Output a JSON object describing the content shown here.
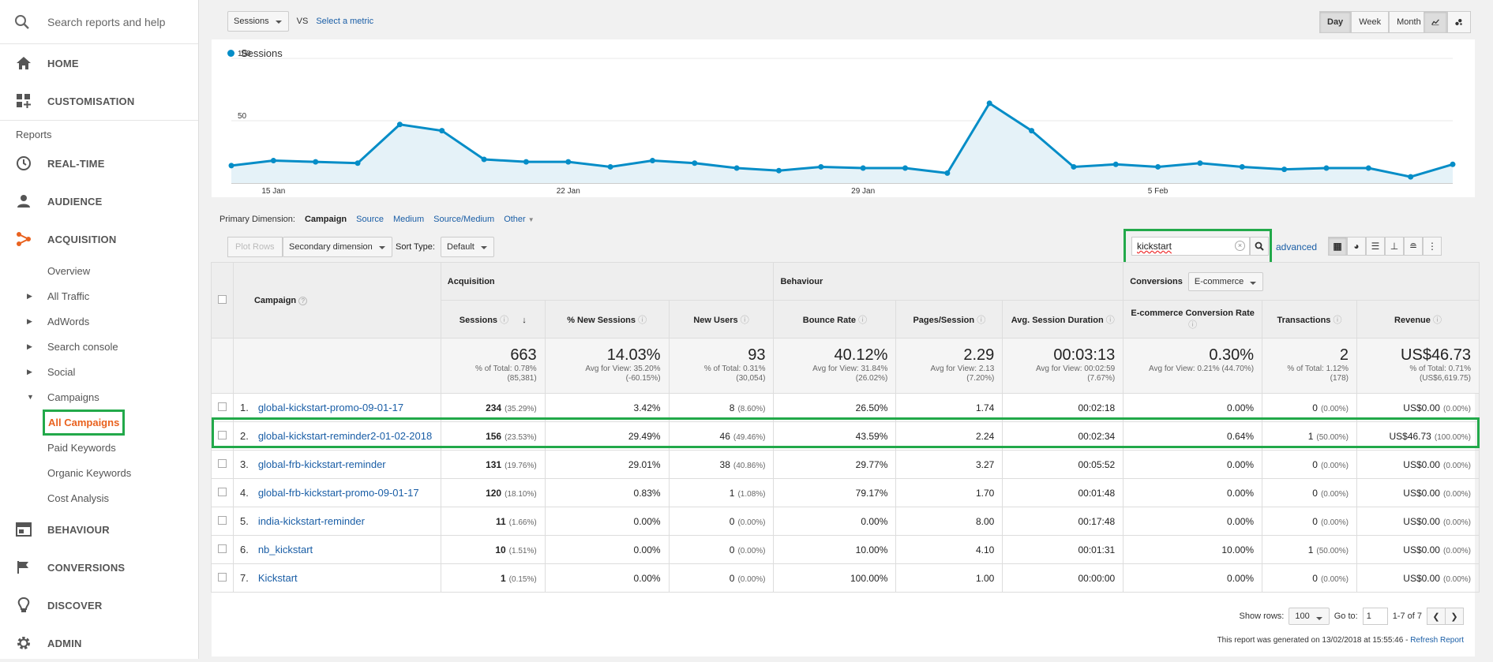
{
  "sidebar": {
    "search_placeholder": "Search reports and help",
    "items": [
      {
        "label": "HOME"
      },
      {
        "label": "CUSTOMISATION"
      }
    ],
    "reports_label": "Reports",
    "sections": [
      {
        "label": "REAL-TIME"
      },
      {
        "label": "AUDIENCE"
      },
      {
        "label": "ACQUISITION"
      }
    ],
    "acq_sub": [
      "Overview",
      "All Traffic",
      "AdWords",
      "Search console",
      "Social",
      "Campaigns"
    ],
    "campaign_sub": [
      "All Campaigns",
      "Paid Keywords",
      "Organic Keywords",
      "Cost Analysis"
    ],
    "bottom": [
      {
        "label": "BEHAVIOUR"
      },
      {
        "label": "CONVERSIONS"
      },
      {
        "label": "DISCOVER"
      },
      {
        "label": "ADMIN"
      }
    ]
  },
  "topbar": {
    "metric_select": "Sessions",
    "vs": "VS",
    "select_metric": "Select a metric",
    "range_buttons": [
      "Day",
      "Week",
      "Month"
    ]
  },
  "chart_data": {
    "type": "line",
    "title": "",
    "series": [
      {
        "name": "Sessions",
        "values": [
          14,
          18,
          17,
          16,
          47,
          42,
          19,
          17,
          17,
          13,
          18,
          16,
          12,
          10,
          13,
          12,
          12,
          8,
          64,
          42,
          13,
          15,
          13,
          16,
          13,
          11,
          12,
          12,
          5,
          15
        ]
      }
    ],
    "x_ticks": [
      "15 Jan",
      "22 Jan",
      "29 Jan",
      "5 Feb"
    ],
    "y_ticks": [
      "100",
      "50"
    ],
    "ylim": [
      0,
      100
    ],
    "color": "#058dc7"
  },
  "primary_dimension": {
    "label": "Primary Dimension:",
    "options": [
      "Campaign",
      "Source",
      "Medium",
      "Source/Medium",
      "Other"
    ]
  },
  "tools": {
    "plot_rows": "Plot Rows",
    "secondary_dimension": "Secondary dimension",
    "sort_type_label": "Sort Type:",
    "sort_type": "Default",
    "search_value": "kickstart",
    "advanced": "advanced"
  },
  "table": {
    "campaign_header": "Campaign",
    "groups": {
      "acquisition": "Acquisition",
      "behaviour": "Behaviour",
      "conversions": "Conversions",
      "conversions_select": "E-commerce"
    },
    "columns": [
      "Sessions",
      "% New Sessions",
      "New Users",
      "Bounce Rate",
      "Pages/Session",
      "Avg. Session Duration",
      "E-commerce Conversion Rate",
      "Transactions",
      "Revenue"
    ],
    "totals": [
      {
        "big": "663",
        "l1": "% of Total: 0.78%",
        "l2": "(85,381)"
      },
      {
        "big": "14.03%",
        "l1": "Avg for View: 35.20%",
        "l2": "(-60.15%)"
      },
      {
        "big": "93",
        "l1": "% of Total: 0.31%",
        "l2": "(30,054)"
      },
      {
        "big": "40.12%",
        "l1": "Avg for View: 31.84%",
        "l2": "(26.02%)"
      },
      {
        "big": "2.29",
        "l1": "Avg for View: 2.13",
        "l2": "(7.20%)"
      },
      {
        "big": "00:03:13",
        "l1": "Avg for View: 00:02:59",
        "l2": "(7.67%)"
      },
      {
        "big": "0.30%",
        "l1": "Avg for View: 0.21% (44.70%)",
        "l2": ""
      },
      {
        "big": "2",
        "l1": "% of Total: 1.12%",
        "l2": "(178)"
      },
      {
        "big": "US$46.73",
        "l1": "% of Total: 0.71%",
        "l2": "(US$6,619.75)"
      }
    ],
    "rows": [
      {
        "n": "1.",
        "name": "global-kickstart-promo-09-01-17",
        "s": "234",
        "sp": "(35.29%)",
        "ns": "3.42%",
        "nu": "8",
        "nup": "(8.60%)",
        "br": "26.50%",
        "ps": "1.74",
        "dur": "00:02:18",
        "cr": "0.00%",
        "tr": "0",
        "trp": "(0.00%)",
        "rev": "US$0.00",
        "revp": "(0.00%)"
      },
      {
        "n": "2.",
        "name": "global-kickstart-reminder2-01-02-2018",
        "s": "156",
        "sp": "(23.53%)",
        "ns": "29.49%",
        "nu": "46",
        "nup": "(49.46%)",
        "br": "43.59%",
        "ps": "2.24",
        "dur": "00:02:34",
        "cr": "0.64%",
        "tr": "1",
        "trp": "(50.00%)",
        "rev": "US$46.73",
        "revp": "(100.00%)"
      },
      {
        "n": "3.",
        "name": "global-frb-kickstart-reminder",
        "s": "131",
        "sp": "(19.76%)",
        "ns": "29.01%",
        "nu": "38",
        "nup": "(40.86%)",
        "br": "29.77%",
        "ps": "3.27",
        "dur": "00:05:52",
        "cr": "0.00%",
        "tr": "0",
        "trp": "(0.00%)",
        "rev": "US$0.00",
        "revp": "(0.00%)"
      },
      {
        "n": "4.",
        "name": "global-frb-kickstart-promo-09-01-17",
        "s": "120",
        "sp": "(18.10%)",
        "ns": "0.83%",
        "nu": "1",
        "nup": "(1.08%)",
        "br": "79.17%",
        "ps": "1.70",
        "dur": "00:01:48",
        "cr": "0.00%",
        "tr": "0",
        "trp": "(0.00%)",
        "rev": "US$0.00",
        "revp": "(0.00%)"
      },
      {
        "n": "5.",
        "name": "india-kickstart-reminder",
        "s": "11",
        "sp": "(1.66%)",
        "ns": "0.00%",
        "nu": "0",
        "nup": "(0.00%)",
        "br": "0.00%",
        "ps": "8.00",
        "dur": "00:17:48",
        "cr": "0.00%",
        "tr": "0",
        "trp": "(0.00%)",
        "rev": "US$0.00",
        "revp": "(0.00%)"
      },
      {
        "n": "6.",
        "name": "nb_kickstart",
        "s": "10",
        "sp": "(1.51%)",
        "ns": "0.00%",
        "nu": "0",
        "nup": "(0.00%)",
        "br": "10.00%",
        "ps": "4.10",
        "dur": "00:01:31",
        "cr": "10.00%",
        "tr": "1",
        "trp": "(50.00%)",
        "rev": "US$0.00",
        "revp": "(0.00%)"
      },
      {
        "n": "7.",
        "name": "Kickstart",
        "s": "1",
        "sp": "(0.15%)",
        "ns": "0.00%",
        "nu": "0",
        "nup": "(0.00%)",
        "br": "100.00%",
        "ps": "1.00",
        "dur": "00:00:00",
        "cr": "0.00%",
        "tr": "0",
        "trp": "(0.00%)",
        "rev": "US$0.00",
        "revp": "(0.00%)"
      }
    ]
  },
  "footer": {
    "show_rows": "Show rows:",
    "rows_value": "100",
    "go_to": "Go to:",
    "page": "1",
    "range": "1-7 of 7",
    "generated": "This report was generated on 13/02/2018 at 15:55:46 - ",
    "refresh": "Refresh Report"
  }
}
